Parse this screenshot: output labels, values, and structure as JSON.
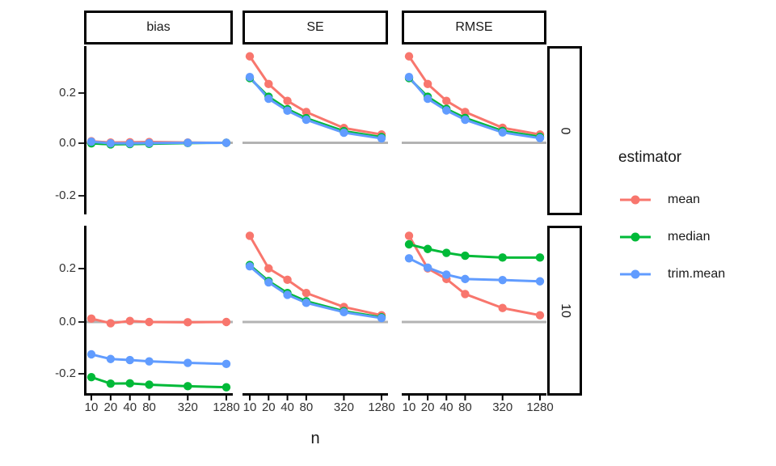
{
  "figure": {
    "background": "#FFFFFF",
    "legend": {
      "title": "estimator",
      "entries": [
        {
          "label": "mean",
          "color": "#F8766D"
        },
        {
          "label": "median",
          "color": "#00BA38"
        },
        {
          "label": "trim.mean",
          "color": "#619CFF"
        }
      ]
    }
  },
  "chart_data": {
    "type": "line",
    "x_scale": "log2",
    "x": [
      10,
      20,
      40,
      80,
      320,
      1280
    ],
    "x_tick_labels": [
      "10",
      "20",
      "40",
      "80",
      "320",
      "1280"
    ],
    "xlabel": "n",
    "y_tick_values": [
      0.2,
      0.0,
      -0.2
    ],
    "y_tick_labels": [
      "0.2",
      "0.0",
      "-0.2"
    ],
    "ylim": [
      -0.3,
      0.38
    ],
    "reference_line_y": 0,
    "reference_line_color": "#B3B3B3",
    "grid": "off",
    "legend_position": "right",
    "facet_cols": [
      "bias",
      "SE",
      "RMSE"
    ],
    "facet_rows": [
      "0",
      "10"
    ],
    "series_order": [
      "mean",
      "median",
      "trim.mean"
    ],
    "series_colors": {
      "mean": "#F8766D",
      "median": "#00BA38",
      "trim.mean": "#619CFF"
    },
    "panels": [
      {
        "row": "0",
        "col": "bias",
        "series": {
          "mean": [
            0.006,
            0.001,
            0.002,
            0.003,
            0.001,
            0.0
          ],
          "median": [
            -0.002,
            -0.006,
            -0.005,
            -0.004,
            -0.001,
            0.0
          ],
          "trim.mean": [
            0.004,
            -0.002,
            -0.002,
            -0.001,
            0.0,
            0.0
          ]
        }
      },
      {
        "row": "0",
        "col": "SE",
        "series": {
          "mean": [
            0.334,
            0.227,
            0.162,
            0.119,
            0.057,
            0.032
          ],
          "median": [
            0.25,
            0.178,
            0.13,
            0.095,
            0.045,
            0.022
          ],
          "trim.mean": [
            0.254,
            0.17,
            0.124,
            0.089,
            0.039,
            0.017
          ]
        }
      },
      {
        "row": "0",
        "col": "RMSE",
        "series": {
          "mean": [
            0.334,
            0.227,
            0.162,
            0.119,
            0.058,
            0.032
          ],
          "median": [
            0.25,
            0.178,
            0.131,
            0.096,
            0.046,
            0.023
          ],
          "trim.mean": [
            0.254,
            0.17,
            0.125,
            0.089,
            0.04,
            0.018
          ]
        }
      },
      {
        "row": "10",
        "col": "bias",
        "series": {
          "mean": [
            0.013,
            -0.005,
            0.004,
            0.0,
            -0.001,
            0.0
          ],
          "median": [
            -0.213,
            -0.238,
            -0.237,
            -0.242,
            -0.248,
            -0.252
          ],
          "trim.mean": [
            -0.125,
            -0.143,
            -0.147,
            -0.152,
            -0.158,
            -0.162
          ]
        }
      },
      {
        "row": "10",
        "col": "SE",
        "series": {
          "mean": [
            0.333,
            0.207,
            0.163,
            0.112,
            0.058,
            0.026
          ],
          "median": [
            0.22,
            0.158,
            0.112,
            0.08,
            0.042,
            0.018
          ],
          "trim.mean": [
            0.215,
            0.153,
            0.105,
            0.074,
            0.038,
            0.015
          ]
        }
      },
      {
        "row": "10",
        "col": "RMSE",
        "series": {
          "mean": [
            0.333,
            0.207,
            0.166,
            0.108,
            0.054,
            0.026
          ],
          "median": [
            0.3,
            0.282,
            0.267,
            0.256,
            0.249,
            0.249
          ],
          "trim.mean": [
            0.246,
            0.21,
            0.183,
            0.166,
            0.162,
            0.157
          ]
        }
      }
    ]
  }
}
